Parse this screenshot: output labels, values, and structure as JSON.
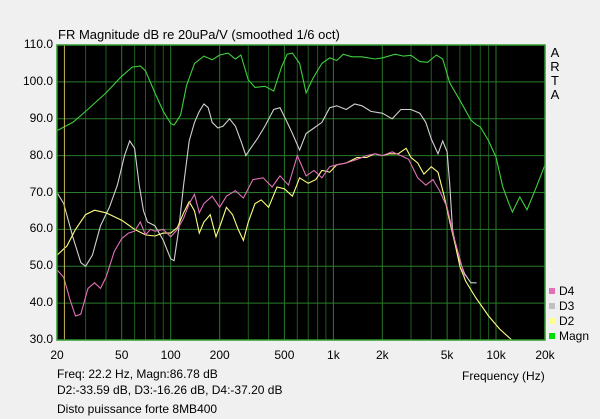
{
  "window": {
    "title": "FR Magnitude dB re 20uPa/V (smoothed 1/6 oct)",
    "brand": [
      "A",
      "R",
      "T",
      "A"
    ]
  },
  "cursor": {
    "freq_line_hz": 22.2,
    "readout_line1": "Freq: 22.2 Hz, Magn:86.78 dB",
    "readout_line2": "D2:-33.59 dB, D3:-16.26 dB, D4:-37.20 dB"
  },
  "caption": "Disto puissance forte 8MB400",
  "colors": {
    "background": "#f0f0f0",
    "plot_bg": "#000000",
    "grid": "#1e5a1e",
    "frame": "#2f9a2f",
    "cursor": "#c8b45a"
  },
  "chart_data": {
    "type": "line",
    "title": "FR Magnitude dB re 20uPa/V (smoothed 1/6 oct)",
    "xlabel": "Frequency (Hz)",
    "ylabel": "",
    "xscale": "log",
    "xlim": [
      20,
      20000
    ],
    "ylim": [
      30,
      110
    ],
    "grid": true,
    "legend_position": "right-bottom",
    "x_ticks": [
      {
        "value": 20,
        "label": "20"
      },
      {
        "value": 50,
        "label": "50"
      },
      {
        "value": 100,
        "label": "100"
      },
      {
        "value": 200,
        "label": "200"
      },
      {
        "value": 500,
        "label": "500"
      },
      {
        "value": 1000,
        "label": "1k"
      },
      {
        "value": 2000,
        "label": "2k"
      },
      {
        "value": 5000,
        "label": "5k"
      },
      {
        "value": 10000,
        "label": "10k"
      },
      {
        "value": 20000,
        "label": "20k"
      }
    ],
    "y_ticks": [
      "110.0",
      "100.0",
      "90.0",
      "80.0",
      "70.0",
      "60.0",
      "50.0",
      "40.0",
      "30.0"
    ],
    "legend": [
      {
        "name": "D4",
        "color": "#e070b8"
      },
      {
        "name": "D3",
        "color": "#c0c0c0"
      },
      {
        "name": "D2",
        "color": "#ffff90"
      },
      {
        "name": "Magn",
        "color": "#00e000"
      }
    ],
    "series": [
      {
        "name": "Magn",
        "color": "#3ed03e",
        "points": [
          [
            20,
            86.8
          ],
          [
            25,
            89
          ],
          [
            30,
            92
          ],
          [
            40,
            97
          ],
          [
            50,
            101.5
          ],
          [
            58,
            104
          ],
          [
            65,
            104.3
          ],
          [
            70,
            103
          ],
          [
            80,
            97
          ],
          [
            90,
            92
          ],
          [
            100,
            88.7
          ],
          [
            105,
            88.3
          ],
          [
            115,
            91
          ],
          [
            125,
            99
          ],
          [
            140,
            105
          ],
          [
            160,
            107
          ],
          [
            180,
            106
          ],
          [
            200,
            107.3
          ],
          [
            225,
            107.8
          ],
          [
            250,
            106.2
          ],
          [
            270,
            107.3
          ],
          [
            300,
            100.5
          ],
          [
            330,
            98.5
          ],
          [
            380,
            98.8
          ],
          [
            430,
            97.5
          ],
          [
            480,
            104
          ],
          [
            520,
            107.5
          ],
          [
            560,
            107.8
          ],
          [
            620,
            105
          ],
          [
            680,
            97
          ],
          [
            750,
            101
          ],
          [
            850,
            105
          ],
          [
            950,
            106.5
          ],
          [
            1050,
            105.8
          ],
          [
            1150,
            107.5
          ],
          [
            1300,
            106.8
          ],
          [
            1500,
            106.8
          ],
          [
            1800,
            106.2
          ],
          [
            2000,
            106.5
          ],
          [
            2400,
            107.5
          ],
          [
            2700,
            107
          ],
          [
            3000,
            107.2
          ],
          [
            3400,
            105.5
          ],
          [
            3800,
            105.3
          ],
          [
            4300,
            107.3
          ],
          [
            4700,
            106.2
          ],
          [
            5200,
            99.7
          ],
          [
            6000,
            95
          ],
          [
            7000,
            89.7
          ],
          [
            7500,
            88.5
          ],
          [
            8000,
            87.8
          ],
          [
            9000,
            84
          ],
          [
            10000,
            79.6
          ],
          [
            11000,
            71.5
          ],
          [
            12000,
            67
          ],
          [
            12600,
            64.7
          ],
          [
            14000,
            68.8
          ],
          [
            15500,
            65.3
          ],
          [
            17500,
            71
          ],
          [
            20000,
            77.5
          ]
        ]
      },
      {
        "name": "D3",
        "color": "#d0d0d0",
        "points": [
          [
            20,
            70
          ],
          [
            22,
            67
          ],
          [
            25,
            58
          ],
          [
            28,
            51
          ],
          [
            30,
            50
          ],
          [
            33,
            53
          ],
          [
            37,
            61
          ],
          [
            42,
            66
          ],
          [
            47,
            72
          ],
          [
            52,
            80
          ],
          [
            56,
            84
          ],
          [
            60,
            82
          ],
          [
            64,
            72
          ],
          [
            68,
            65
          ],
          [
            72,
            62
          ],
          [
            80,
            61
          ],
          [
            90,
            57
          ],
          [
            100,
            52
          ],
          [
            105,
            51.5
          ],
          [
            112,
            60
          ],
          [
            120,
            72
          ],
          [
            130,
            84
          ],
          [
            140,
            89
          ],
          [
            150,
            92
          ],
          [
            160,
            94
          ],
          [
            170,
            93
          ],
          [
            180,
            89
          ],
          [
            195,
            87.5
          ],
          [
            210,
            88
          ],
          [
            230,
            90
          ],
          [
            250,
            88
          ],
          [
            270,
            84
          ],
          [
            290,
            80
          ],
          [
            310,
            82
          ],
          [
            340,
            84.5
          ],
          [
            380,
            88
          ],
          [
            430,
            92.5
          ],
          [
            470,
            93
          ],
          [
            520,
            89
          ],
          [
            560,
            86
          ],
          [
            620,
            81.5
          ],
          [
            680,
            86
          ],
          [
            760,
            87.5
          ],
          [
            850,
            89
          ],
          [
            950,
            93
          ],
          [
            1050,
            93.5
          ],
          [
            1200,
            92.5
          ],
          [
            1350,
            94
          ],
          [
            1500,
            93.5
          ],
          [
            1700,
            92
          ],
          [
            2000,
            91.5
          ],
          [
            2300,
            90
          ],
          [
            2600,
            92.5
          ],
          [
            3000,
            92.5
          ],
          [
            3400,
            91.5
          ],
          [
            3700,
            89
          ],
          [
            4000,
            84.5
          ],
          [
            4400,
            80.5
          ],
          [
            4700,
            84
          ],
          [
            5000,
            81
          ],
          [
            5200,
            72
          ],
          [
            5400,
            60
          ],
          [
            5800,
            53
          ],
          [
            6400,
            48
          ],
          [
            7000,
            45.5
          ],
          [
            7600,
            45.5
          ]
        ]
      },
      {
        "name": "D2",
        "color": "#ffff80",
        "points": [
          [
            20,
            53
          ],
          [
            23,
            55.5
          ],
          [
            26,
            60
          ],
          [
            30,
            64
          ],
          [
            34,
            65.2
          ],
          [
            40,
            64.5
          ],
          [
            50,
            62.5
          ],
          [
            60,
            60
          ],
          [
            70,
            58.5
          ],
          [
            80,
            58.2
          ],
          [
            90,
            59
          ],
          [
            100,
            59
          ],
          [
            110,
            60.5
          ],
          [
            120,
            64.5
          ],
          [
            130,
            67.5
          ],
          [
            140,
            65
          ],
          [
            150,
            59
          ],
          [
            160,
            62
          ],
          [
            175,
            64
          ],
          [
            190,
            58
          ],
          [
            205,
            62
          ],
          [
            220,
            66
          ],
          [
            240,
            64
          ],
          [
            260,
            60
          ],
          [
            280,
            57
          ],
          [
            300,
            62
          ],
          [
            330,
            67
          ],
          [
            360,
            68
          ],
          [
            400,
            66
          ],
          [
            450,
            71.5
          ],
          [
            500,
            71
          ],
          [
            560,
            69
          ],
          [
            620,
            74
          ],
          [
            700,
            72.5
          ],
          [
            780,
            73.5
          ],
          [
            850,
            76
          ],
          [
            950,
            75.5
          ],
          [
            1050,
            77.5
          ],
          [
            1200,
            78
          ],
          [
            1400,
            79.5
          ],
          [
            1600,
            79.5
          ],
          [
            1800,
            80.5
          ],
          [
            2000,
            80
          ],
          [
            2200,
            80.5
          ],
          [
            2500,
            80.5
          ],
          [
            2800,
            82
          ],
          [
            3000,
            79.5
          ],
          [
            3300,
            78
          ],
          [
            3600,
            75
          ],
          [
            4000,
            77
          ],
          [
            4400,
            75.5
          ],
          [
            4800,
            69
          ],
          [
            5200,
            62
          ],
          [
            5600,
            56
          ],
          [
            6000,
            50
          ],
          [
            6500,
            46
          ],
          [
            7500,
            41.5
          ],
          [
            9000,
            36.5
          ],
          [
            10500,
            33
          ],
          [
            12500,
            30
          ]
        ]
      },
      {
        "name": "D4",
        "color": "#e070b8",
        "points": [
          [
            20,
            49
          ],
          [
            22,
            47
          ],
          [
            24,
            41
          ],
          [
            26,
            36.5
          ],
          [
            28,
            37
          ],
          [
            31,
            44
          ],
          [
            34,
            45.5
          ],
          [
            37,
            44
          ],
          [
            40,
            47
          ],
          [
            45,
            54
          ],
          [
            50,
            57.5
          ],
          [
            55,
            59
          ],
          [
            60,
            59.5
          ],
          [
            65,
            62
          ],
          [
            70,
            58.5
          ],
          [
            75,
            60
          ],
          [
            80,
            59.5
          ],
          [
            90,
            60
          ],
          [
            100,
            58
          ],
          [
            110,
            60
          ],
          [
            120,
            63
          ],
          [
            130,
            67
          ],
          [
            140,
            69.5
          ],
          [
            150,
            64.5
          ],
          [
            160,
            67
          ],
          [
            180,
            69
          ],
          [
            200,
            66
          ],
          [
            220,
            69
          ],
          [
            250,
            70.5
          ],
          [
            280,
            68.5
          ],
          [
            320,
            73.5
          ],
          [
            370,
            74
          ],
          [
            420,
            71.5
          ],
          [
            470,
            74.5
          ],
          [
            530,
            72
          ],
          [
            600,
            80
          ],
          [
            680,
            74.5
          ],
          [
            760,
            76
          ],
          [
            850,
            74
          ],
          [
            950,
            77
          ],
          [
            1050,
            77.5
          ],
          [
            1200,
            78
          ],
          [
            1400,
            79
          ],
          [
            1600,
            80
          ],
          [
            1800,
            80.5
          ],
          [
            2000,
            80
          ],
          [
            2300,
            81
          ],
          [
            2600,
            80
          ],
          [
            2900,
            79
          ],
          [
            3300,
            74
          ],
          [
            3700,
            72
          ],
          [
            4100,
            73.5
          ],
          [
            4500,
            70.5
          ],
          [
            5000,
            66
          ],
          [
            5500,
            58
          ],
          [
            6000,
            52
          ],
          [
            6400,
            47
          ]
        ]
      }
    ]
  }
}
